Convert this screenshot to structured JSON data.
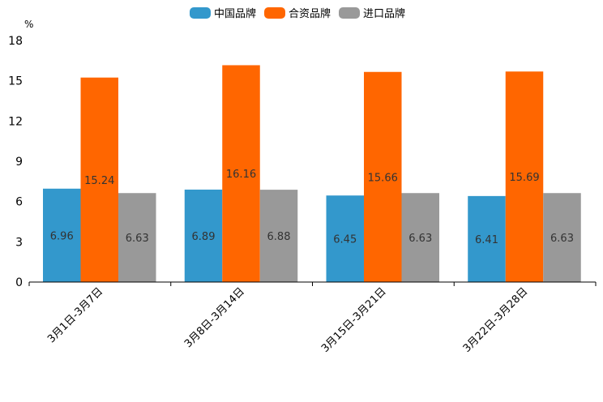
{
  "chart_data": {
    "type": "bar",
    "unit": "%",
    "categories": [
      "3月1日-3月7日",
      "3月8日-3月14日",
      "3月15日-3月21日",
      "3月22日-3月28日"
    ],
    "series": [
      {
        "name": "中国品牌",
        "color": "#3398cc",
        "values": [
          6.96,
          6.89,
          6.45,
          6.41
        ]
      },
      {
        "name": "合资品牌",
        "color": "#ff6600",
        "values": [
          15.24,
          16.16,
          15.66,
          15.69
        ]
      },
      {
        "name": "进口品牌",
        "color": "#999999",
        "values": [
          6.63,
          6.88,
          6.63,
          6.63
        ]
      }
    ],
    "ylim": [
      0,
      18
    ],
    "yticks": [
      0,
      3,
      6,
      9,
      12,
      15,
      18
    ],
    "legend_position": "top-center",
    "grid": false
  }
}
